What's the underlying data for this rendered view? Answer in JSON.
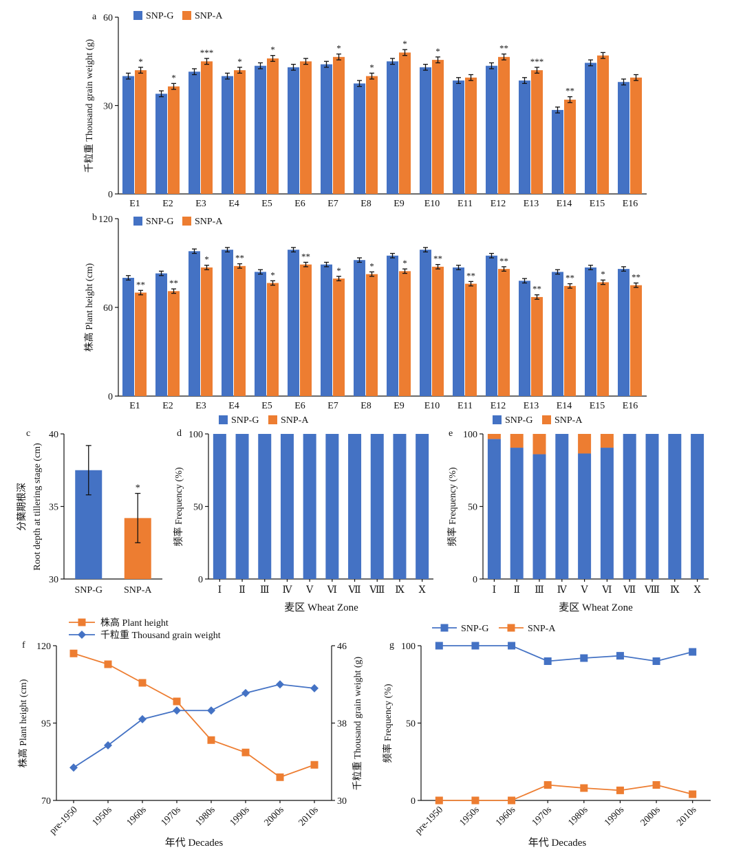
{
  "colors": {
    "g": "#4472C4",
    "a": "#ED7D31",
    "axis": "#111111"
  },
  "chart_data": [
    {
      "panel": "a",
      "type": "bar",
      "ylabel": "千粒重 Thousand grain weight (g)",
      "ylim": [
        0,
        60
      ],
      "yticks": [
        0,
        30,
        60
      ],
      "legend": [
        "SNP-G",
        "SNP-A"
      ],
      "categories": [
        "E1",
        "E2",
        "E3",
        "E4",
        "E5",
        "E6",
        "E7",
        "E8",
        "E9",
        "E10",
        "E11",
        "E12",
        "E13",
        "E14",
        "E15",
        "E16"
      ],
      "series": [
        {
          "name": "SNP-G",
          "values": [
            40,
            34,
            41.5,
            40,
            43.5,
            43,
            44,
            37.5,
            45,
            43,
            38.5,
            43.5,
            38.5,
            28.5,
            44.5,
            38
          ],
          "errors": [
            1,
            1,
            1,
            1,
            1,
            1,
            1,
            1,
            1,
            1,
            1,
            1,
            1,
            1,
            1,
            1
          ]
        },
        {
          "name": "SNP-A",
          "values": [
            42,
            36.5,
            45,
            42,
            46,
            45,
            46.5,
            40,
            48,
            45.5,
            39.5,
            46.5,
            42,
            32,
            47,
            39.5
          ],
          "errors": [
            1,
            1,
            1,
            1,
            1,
            1,
            1,
            1,
            1,
            1,
            1,
            1,
            1,
            1,
            1,
            1
          ]
        }
      ],
      "significance": [
        "*",
        "*",
        "***",
        "*",
        "*",
        "",
        "*",
        "*",
        "*",
        "*",
        "",
        "**",
        "***",
        "**",
        "",
        ""
      ]
    },
    {
      "panel": "b",
      "type": "bar",
      "ylabel": "株高 Plant height (cm)",
      "ylim": [
        0,
        120
      ],
      "yticks": [
        0,
        60,
        120
      ],
      "legend": [
        "SNP-G",
        "SNP-A"
      ],
      "categories": [
        "E1",
        "E2",
        "E3",
        "E4",
        "E5",
        "E6",
        "E7",
        "E8",
        "E9",
        "E10",
        "E11",
        "E12",
        "E13",
        "E14",
        "E15",
        "E16"
      ],
      "series": [
        {
          "name": "SNP-G",
          "values": [
            80,
            83,
            98,
            99,
            84,
            99,
            89,
            92,
            95,
            99,
            87,
            95,
            78,
            84,
            87,
            86
          ],
          "errors": [
            1.5,
            1.5,
            1.5,
            1.5,
            1.5,
            1.5,
            1.5,
            1.5,
            1.5,
            1.5,
            1.5,
            1.5,
            1.5,
            1.5,
            1.5,
            1.5
          ]
        },
        {
          "name": "SNP-A",
          "values": [
            70,
            71,
            87,
            88,
            76.5,
            89,
            79.5,
            82.5,
            84.5,
            87.5,
            76,
            86,
            67,
            74.5,
            77,
            75
          ],
          "errors": [
            1.5,
            1.5,
            1.5,
            1.5,
            1.5,
            1.5,
            1.5,
            1.5,
            1.5,
            1.5,
            1.5,
            1.5,
            1.5,
            1.5,
            1.5,
            1.5
          ]
        }
      ],
      "significance": [
        "**",
        "**",
        "*",
        "**",
        "*",
        "**",
        "*",
        "*",
        "*",
        "**",
        "**",
        "**",
        "**",
        "**",
        "*",
        "**"
      ]
    },
    {
      "panel": "c",
      "type": "bar",
      "ylabel": "分蘖期根深 Root depth at tillering stage (cm)",
      "ylim": [
        30,
        40
      ],
      "yticks": [
        30,
        35,
        40
      ],
      "categories": [
        "SNP-G",
        "SNP-A"
      ],
      "values": [
        37.5,
        34.2
      ],
      "errors": [
        1.7,
        1.7
      ],
      "significance": [
        "",
        "*"
      ]
    },
    {
      "panel": "d",
      "type": "bar",
      "stacked": true,
      "ylabel": "频率 Frequency (%)",
      "xlabel": "麦区 Wheat Zone",
      "ylim": [
        0,
        100
      ],
      "yticks": [
        0,
        50,
        100
      ],
      "legend": [
        "SNP-G",
        "SNP-A"
      ],
      "categories": [
        "Ⅰ",
        "Ⅱ",
        "Ⅲ",
        "Ⅳ",
        "Ⅴ",
        "Ⅵ",
        "Ⅶ",
        "Ⅷ",
        "Ⅸ",
        "Ⅹ"
      ],
      "series": [
        {
          "name": "SNP-G",
          "values": [
            100,
            100,
            100,
            100,
            100,
            100,
            100,
            100,
            100,
            100
          ]
        },
        {
          "name": "SNP-A",
          "values": [
            0,
            0,
            0,
            0,
            0,
            0,
            0,
            0,
            0,
            0
          ]
        }
      ]
    },
    {
      "panel": "e",
      "type": "bar",
      "stacked": true,
      "ylabel": "频率 Frequency (%)",
      "xlabel": "麦区 Wheat Zone",
      "ylim": [
        0,
        100
      ],
      "yticks": [
        0,
        50,
        100
      ],
      "legend": [
        "SNP-G",
        "SNP-A"
      ],
      "categories": [
        "Ⅰ",
        "Ⅱ",
        "Ⅲ",
        "Ⅳ",
        "Ⅴ",
        "Ⅵ",
        "Ⅶ",
        "Ⅷ",
        "Ⅸ",
        "Ⅹ"
      ],
      "series": [
        {
          "name": "SNP-G",
          "values": [
            96.5,
            90.5,
            86,
            100,
            86.5,
            90.5,
            100,
            100,
            100,
            100
          ]
        },
        {
          "name": "SNP-A",
          "values": [
            3.5,
            9.5,
            14,
            0,
            13.5,
            9.5,
            0,
            0,
            0,
            0
          ]
        }
      ]
    },
    {
      "panel": "f",
      "type": "line",
      "xlabel": "年代 Decades",
      "ylabel_left": "株高 Plant height (cm)",
      "ylabel_right": "千粒重 Thousand grain weight (g)",
      "ylim_left": [
        70,
        120
      ],
      "yticks_left": [
        70,
        95,
        120
      ],
      "ylim_right": [
        30,
        46
      ],
      "yticks_right": [
        30,
        38,
        46
      ],
      "categories": [
        "pre-1950",
        "1950s",
        "1960s",
        "1970s",
        "1980s",
        "1990s",
        "2000s",
        "2010s"
      ],
      "series": [
        {
          "name": "株高 Plant height",
          "axis": "left",
          "marker": "square",
          "values": [
            117.5,
            114,
            108,
            102,
            89.5,
            85.5,
            77.5,
            81.5
          ]
        },
        {
          "name": "千粒重 Thousand grain weight",
          "axis": "right",
          "marker": "diamond",
          "values": [
            33.4,
            35.7,
            38.4,
            39.3,
            39.3,
            41.1,
            42.0,
            41.6
          ]
        }
      ]
    },
    {
      "panel": "g",
      "type": "line",
      "xlabel": "年代 Decades",
      "ylabel": "频率 Frequency (%)",
      "ylim": [
        0,
        100
      ],
      "yticks": [
        0,
        50,
        100
      ],
      "categories": [
        "pre-1950",
        "1950s",
        "1960s",
        "1970s",
        "1980s",
        "1990s",
        "2000s",
        "2010s"
      ],
      "series": [
        {
          "name": "SNP-G",
          "marker": "square",
          "values": [
            100,
            100,
            100,
            90,
            92,
            93.5,
            90,
            96
          ]
        },
        {
          "name": "SNP-A",
          "marker": "square",
          "values": [
            0,
            0,
            0,
            10,
            8,
            6.5,
            10,
            4
          ]
        }
      ]
    }
  ]
}
